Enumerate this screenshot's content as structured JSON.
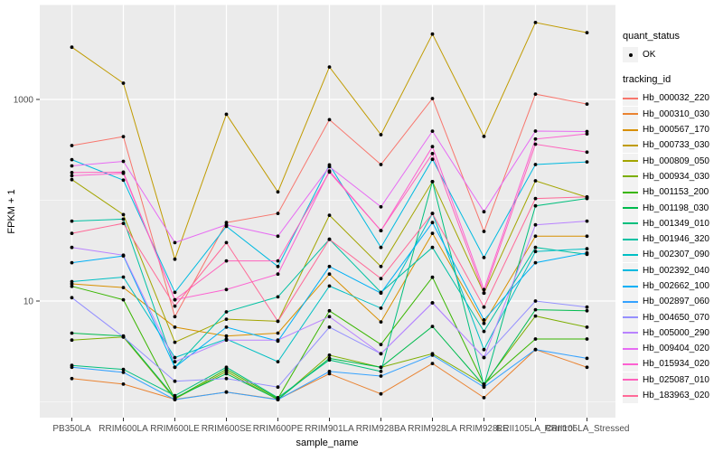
{
  "figure": {
    "background": "#FFFFFF",
    "panel_background": "#EBEBEB",
    "gridline_color": "#FFFFFF",
    "axis_text_color": "#4D4D4D",
    "axis_tick_color": "#333333",
    "axis_title_color": "#000000",
    "point_label": "OK"
  },
  "legend": {
    "quant_status": {
      "title": "quant_status",
      "items": [
        {
          "label": "OK",
          "marker": "point",
          "color": "#000000"
        }
      ]
    },
    "tracking_id": {
      "title": "tracking_id"
    }
  },
  "chart_data": {
    "type": "line",
    "title": "",
    "xlabel": "sample_name",
    "ylabel": "FPKM + 1",
    "y_scale": "log10",
    "y_major_ticks": [
      10,
      1000
    ],
    "y_minor_ticks": [
      1,
      100
    ],
    "ylim": [
      0.7,
      9000
    ],
    "grid": true,
    "legend_position": "right",
    "point_color": "#000000",
    "categories": [
      "PB350LA",
      "RRIM600LA",
      "RRIM600LE",
      "RRIM600SE",
      "RRIM600PE",
      "RRIM901LA",
      "RRIM928BA",
      "RRIM928LA",
      "RRIM928LE",
      "RRII105LA_Control",
      "RRII105LA_Stressed"
    ],
    "series": [
      {
        "name": "Hb_000032_220",
        "color": "#F8766D",
        "values": [
          349,
          428,
          7,
          60,
          74,
          630,
          226,
          1020,
          49,
          1130,
          900
        ]
      },
      {
        "name": "Hb_000310_030",
        "color": "#EA8331",
        "values": [
          1.7,
          1.5,
          1.06,
          1.25,
          1.06,
          1.9,
          1.2,
          2.4,
          1.1,
          3.3,
          2.2
        ]
      },
      {
        "name": "Hb_000567_170",
        "color": "#D89000",
        "values": [
          14.8,
          13.6,
          5.5,
          4.5,
          4.8,
          18.5,
          6.2,
          47,
          6.0,
          44,
          44
        ]
      },
      {
        "name": "Hb_000733_030",
        "color": "#C09B00",
        "values": [
          3300,
          1450,
          26,
          713,
          121,
          2100,
          447,
          4450,
          430,
          5800,
          4600
        ]
      },
      {
        "name": "Hb_000809_050",
        "color": "#A3A500",
        "values": [
          160,
          72,
          3.9,
          6.6,
          6.3,
          71,
          22,
          153,
          12,
          156,
          107
        ]
      },
      {
        "name": "Hb_000934_030",
        "color": "#7CAE00",
        "values": [
          4.1,
          4.4,
          1.07,
          2.0,
          1.05,
          2.9,
          2.2,
          3.0,
          1.5,
          7.1,
          5.5
        ]
      },
      {
        "name": "Hb_001153_200",
        "color": "#39B600",
        "values": [
          14,
          10.3,
          1.08,
          2.1,
          1.08,
          8.0,
          3.7,
          17.2,
          1.5,
          4.2,
          4.2
        ]
      },
      {
        "name": "Hb_001198_030",
        "color": "#00BB4E",
        "values": [
          4.8,
          4.5,
          1.1,
          1.9,
          1.06,
          2.7,
          2.2,
          5.6,
          1.45,
          8.2,
          8.0
        ]
      },
      {
        "name": "Hb_001349_010",
        "color": "#00BF7D",
        "values": [
          2.3,
          2.1,
          1.15,
          2.2,
          1.1,
          2.6,
          2.0,
          153,
          1.45,
          88,
          104
        ]
      },
      {
        "name": "Hb_001946_320",
        "color": "#00C1A3",
        "values": [
          62,
          65,
          2.2,
          7.8,
          11,
          41,
          12.2,
          34,
          5.0,
          34,
          29
        ]
      },
      {
        "name": "Hb_002307_090",
        "color": "#00BFC4",
        "values": [
          15.6,
          17.3,
          2.75,
          4.2,
          2.5,
          14.1,
          8.5,
          74,
          3.3,
          31,
          33
        ]
      },
      {
        "name": "Hb_002392_040",
        "color": "#00BAE0",
        "values": [
          253,
          158,
          12.2,
          55,
          22,
          224,
          34,
          255,
          27,
          226,
          240
        ]
      },
      {
        "name": "Hb_002662_100",
        "color": "#00B0F6",
        "values": [
          24,
          28,
          2.2,
          5.5,
          4.0,
          22,
          12,
          60,
          6.5,
          24,
          30
        ]
      },
      {
        "name": "Hb_002897_060",
        "color": "#35A2FF",
        "values": [
          2.2,
          1.96,
          1.05,
          1.25,
          1.05,
          2.0,
          1.8,
          2.9,
          1.4,
          3.3,
          2.7
        ]
      },
      {
        "name": "Hb_004650_070",
        "color": "#9590FF",
        "values": [
          10.8,
          4.4,
          1.6,
          1.7,
          1.4,
          5.5,
          3.0,
          9.6,
          2.75,
          10,
          8.7
        ]
      },
      {
        "name": "Hb_005000_290",
        "color": "#B983FF",
        "values": [
          34,
          28.5,
          2.5,
          4.1,
          4.1,
          7.0,
          3.0,
          9.6,
          2.75,
          57,
          62
        ]
      },
      {
        "name": "Hb_009404_020",
        "color": "#E76BF3",
        "values": [
          219,
          243,
          38,
          57,
          44,
          215,
          86,
          484,
          77,
          485,
          480
        ]
      },
      {
        "name": "Hb_015934_020",
        "color": "#FD61D1",
        "values": [
          175,
          185,
          10.3,
          13,
          18.5,
          195,
          50,
          340,
          13,
          405,
          455
        ]
      },
      {
        "name": "Hb_025087_010",
        "color": "#FF62BC",
        "values": [
          188,
          190,
          10.3,
          25,
          25,
          190,
          50,
          290,
          12,
          360,
          300
        ]
      },
      {
        "name": "Hb_183963_020",
        "color": "#FF6A98",
        "values": [
          47,
          59,
          8.9,
          38,
          6.3,
          41,
          16.7,
          74,
          8.7,
          104,
          108
        ]
      }
    ]
  }
}
